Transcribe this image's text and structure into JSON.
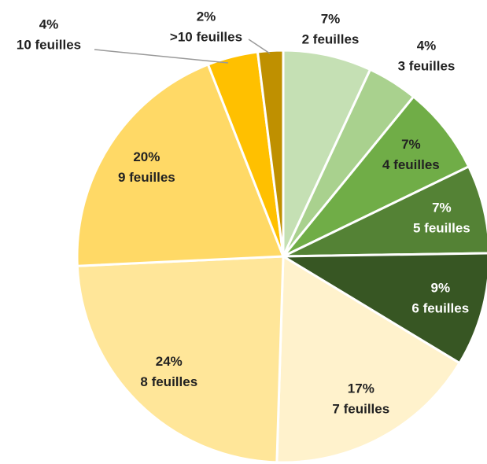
{
  "chart_data": {
    "type": "pie",
    "categories": [
      "2 feuilles",
      "3 feuilles",
      "4 feuilles",
      "5 feuilles",
      "6 feuilles",
      "7 feuilles",
      "8 feuilles",
      "9 feuilles",
      "10 feuilles",
      ">10 feuilles"
    ],
    "values": [
      7,
      4,
      7,
      7,
      9,
      17,
      24,
      20,
      4,
      2
    ],
    "value_labels": [
      "7%",
      "4%",
      "7%",
      "7%",
      "9%",
      "17%",
      "24%",
      "20%",
      "4%",
      "2%"
    ],
    "colors": [
      "#c5e0b4",
      "#a9d18e",
      "#70ad47",
      "#548235",
      "#375623",
      "#fff2cc",
      "#ffe699",
      "#ffd966",
      "#ffc000",
      "#bf9000"
    ]
  }
}
